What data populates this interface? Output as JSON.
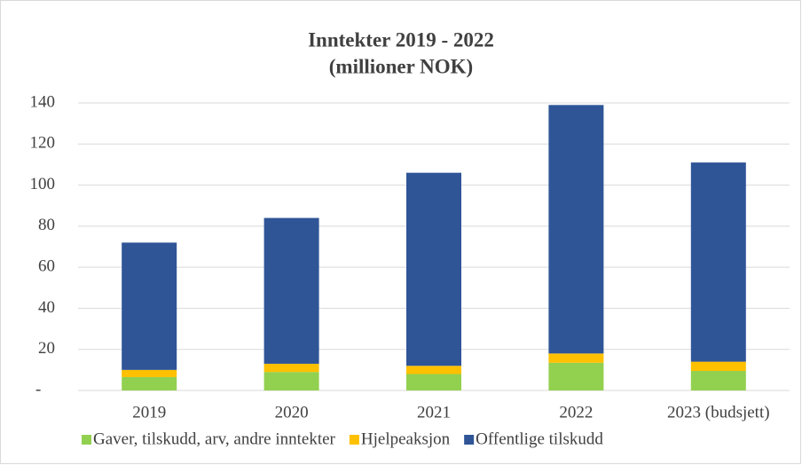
{
  "chart_data": {
    "type": "stacked_bar",
    "title": "Inntekter 2019 - 2022",
    "subtitle": "(millioner NOK)",
    "categories": [
      "2019",
      "2020",
      "2021",
      "2022",
      "2023 (budsjett)"
    ],
    "series": [
      {
        "name": "Gaver, tilskudd, arv, andre inntekter",
        "color": "#92d050",
        "values": [
          6.5,
          9,
          8,
          13.5,
          9.5
        ]
      },
      {
        "name": "Hjelpeaksjon",
        "color": "#ffc000",
        "values": [
          3.5,
          4,
          4,
          4.5,
          4.5
        ]
      },
      {
        "name": "Offentlige tilskudd",
        "color": "#2f5597",
        "values": [
          62,
          71,
          94,
          121,
          97
        ]
      }
    ],
    "ylim": [
      0,
      140
    ],
    "yticks": [
      {
        "value": 0,
        "label": "-"
      },
      20,
      40,
      60,
      80,
      100,
      120,
      140
    ],
    "grid": true,
    "legend": "bottom"
  }
}
